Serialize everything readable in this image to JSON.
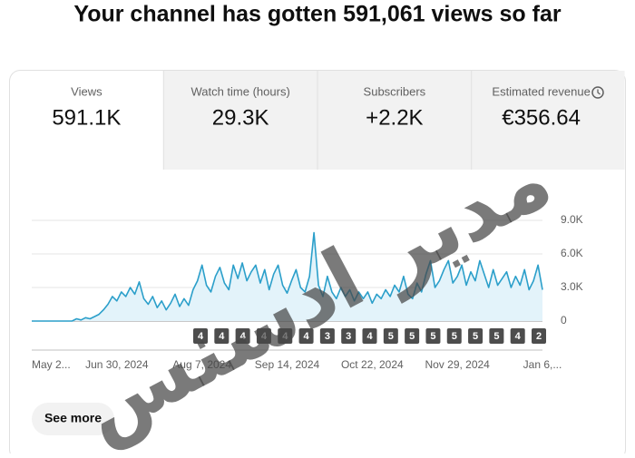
{
  "header": {
    "title": "Your channel has gotten 591,061 views so far"
  },
  "cards": [
    {
      "label": "Views",
      "value": "591.1K"
    },
    {
      "label": "Watch time (hours)",
      "value": "29.3K"
    },
    {
      "label": "Subscribers",
      "value": "+2.2K"
    },
    {
      "label": "Estimated revenue",
      "value": "€356.64"
    }
  ],
  "chart_data": {
    "type": "line",
    "color": "#2b9fca",
    "fill": "#e3f3fa",
    "categories": [
      "May 2...",
      null,
      null,
      null,
      null,
      null,
      null,
      null,
      null,
      null,
      null,
      null,
      null,
      null,
      null,
      null,
      null,
      null,
      null,
      "Jun 30, 2024",
      null,
      null,
      null,
      null,
      null,
      null,
      null,
      null,
      null,
      null,
      null,
      null,
      null,
      null,
      null,
      null,
      null,
      null,
      "Aug 7, 2024",
      null,
      null,
      null,
      null,
      null,
      null,
      null,
      null,
      null,
      null,
      null,
      null,
      null,
      null,
      null,
      null,
      null,
      null,
      "Sep 14, 2024",
      null,
      null,
      null,
      null,
      null,
      null,
      null,
      null,
      null,
      null,
      null,
      null,
      null,
      null,
      null,
      null,
      null,
      null,
      "Oct 22, 2024",
      null,
      null,
      null,
      null,
      null,
      null,
      null,
      null,
      null,
      null,
      null,
      null,
      null,
      null,
      null,
      null,
      null,
      null,
      "Nov 29, 2024",
      null,
      null,
      null,
      null,
      null,
      null,
      null,
      null,
      null,
      null,
      null,
      null,
      null,
      null,
      null,
      null,
      null,
      null,
      "Jan 6,..."
    ],
    "values": [
      0,
      0,
      0,
      0,
      0,
      0,
      0,
      0,
      0,
      0,
      200,
      100,
      300,
      200,
      400,
      600,
      1000,
      1500,
      2200,
      1800,
      2600,
      2200,
      3000,
      2400,
      3500,
      2000,
      1500,
      2200,
      1200,
      1800,
      1000,
      1600,
      2400,
      1300,
      2000,
      1400,
      2800,
      3600,
      5000,
      3200,
      2600,
      4000,
      4800,
      3400,
      2800,
      5000,
      3800,
      5200,
      3600,
      4400,
      5000,
      3400,
      4600,
      2800,
      4200,
      5000,
      3200,
      2500,
      3600,
      4600,
      3000,
      2600,
      4000,
      7900,
      3200,
      2200,
      4000,
      2600,
      2000,
      3000,
      2200,
      2800,
      1800,
      2600,
      2000,
      2600,
      1600,
      2400,
      2000,
      2800,
      2200,
      3200,
      2600,
      4000,
      2400,
      2000,
      3400,
      2600,
      4200,
      5400,
      3000,
      3600,
      4600,
      5400,
      3400,
      4000,
      5000,
      3200,
      4400,
      3600,
      5400,
      4200,
      3000,
      4600,
      3200,
      3800,
      4400,
      3000,
      4000,
      3200,
      4600,
      2800,
      3600,
      5000,
      2800
    ],
    "ylim": [
      0,
      9000
    ],
    "yticks": [
      0,
      {
        "value": 3000,
        "label": "3.0K"
      },
      {
        "value": 6000,
        "label": "6.0K"
      },
      {
        "value": 9000,
        "label": "9.0K"
      }
    ],
    "grid": true
  },
  "video_markers": [
    "4",
    "4",
    "4",
    "4",
    "4",
    "4",
    "3",
    "3",
    "4",
    "5",
    "5",
    "5",
    "5",
    "5",
    "5",
    "4",
    "2"
  ],
  "button": "See more",
  "watermark": "مدير ادسنس"
}
